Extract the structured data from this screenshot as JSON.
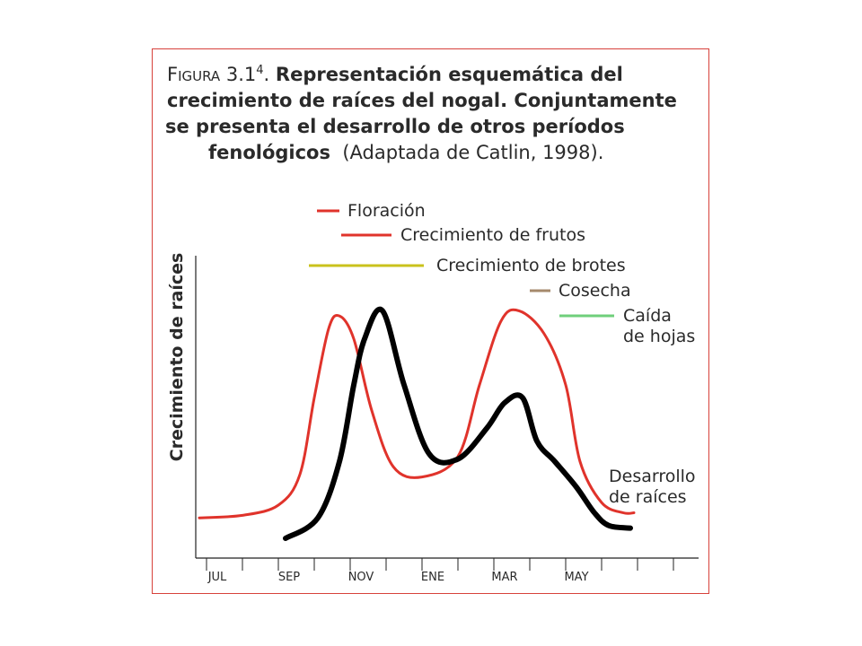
{
  "caption": {
    "figure_label": "Figura 3.1",
    "figure_sup": "4",
    "figure_dot": ".",
    "bold_line1": "Representación esquemática del",
    "bold_line2": "crecimiento de raíces del nogal. Conjuntamente",
    "bold_line3": "se presenta el desarrollo de otros períodos",
    "bold_line4": "fenológicos",
    "source": "(Adaptada de Catlin, 1998)."
  },
  "chart_data": {
    "type": "line",
    "title": "",
    "ylabel": "Crecimiento de raíces",
    "xlabel": "",
    "categories": [
      "JUL",
      "SEP",
      "NOV",
      "ENE",
      "MAR",
      "MAY"
    ],
    "ylim": [
      0,
      100
    ],
    "grid": false,
    "legend": [
      {
        "label": "Floración",
        "color": "#e0332b"
      },
      {
        "label": "Crecimiento de frutos",
        "color": "#e0332b"
      },
      {
        "label": "Crecimiento de brotes",
        "color": "#c9c21c"
      },
      {
        "label": "Cosecha",
        "color": "#a58a6c"
      },
      {
        "label": "Caída\nde hojas",
        "color": "#6fcf7b"
      }
    ],
    "series": [
      {
        "color": "#e0332b",
        "points": [
          [
            -0.1,
            8
          ],
          [
            0.5,
            9
          ],
          [
            1,
            13
          ],
          [
            1.3,
            25
          ],
          [
            1.5,
            55
          ],
          [
            1.7,
            82
          ],
          [
            1.85,
            87
          ],
          [
            2.05,
            78
          ],
          [
            2.3,
            50
          ],
          [
            2.6,
            28
          ],
          [
            3.0,
            24
          ],
          [
            3.5,
            32
          ],
          [
            3.8,
            60
          ],
          [
            4.1,
            85
          ],
          [
            4.35,
            89
          ],
          [
            4.7,
            80
          ],
          [
            5.0,
            60
          ],
          [
            5.2,
            30
          ],
          [
            5.5,
            14
          ],
          [
            5.8,
            10
          ],
          [
            5.95,
            10
          ]
        ]
      },
      {
        "name": "Desarrollo\nde raíces",
        "color": "#000000",
        "points": [
          [
            1.1,
            0
          ],
          [
            1.55,
            8
          ],
          [
            1.85,
            30
          ],
          [
            2.05,
            60
          ],
          [
            2.2,
            78
          ],
          [
            2.45,
            89
          ],
          [
            2.75,
            60
          ],
          [
            3.1,
            33
          ],
          [
            3.5,
            31
          ],
          [
            3.9,
            43
          ],
          [
            4.15,
            53
          ],
          [
            4.4,
            55
          ],
          [
            4.6,
            38
          ],
          [
            4.85,
            30
          ],
          [
            5.15,
            20
          ],
          [
            5.4,
            10
          ],
          [
            5.6,
            5
          ],
          [
            5.9,
            4
          ]
        ]
      }
    ],
    "series_label": "Desarrollo\nde raíces",
    "colors": {
      "frame": "#d7413b",
      "text": "#2a2a2a"
    }
  }
}
